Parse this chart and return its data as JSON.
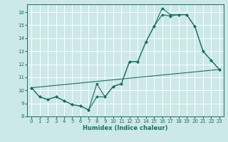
{
  "title": "",
  "xlabel": "Humidex (Indice chaleur)",
  "ylabel": "",
  "bg_color": "#cce8e8",
  "line_color": "#1a6e64",
  "grid_color": "#ffffff",
  "xlim": [
    -0.5,
    23.5
  ],
  "ylim": [
    8,
    16.6
  ],
  "yticks": [
    8,
    9,
    10,
    11,
    12,
    13,
    14,
    15,
    16
  ],
  "xticks": [
    0,
    1,
    2,
    3,
    4,
    5,
    6,
    7,
    8,
    9,
    10,
    11,
    12,
    13,
    14,
    15,
    16,
    17,
    18,
    19,
    20,
    21,
    22,
    23
  ],
  "series": [
    {
      "x": [
        0,
        1,
        2,
        3,
        4,
        5,
        6,
        7,
        8,
        9,
        10,
        11,
        12,
        13,
        14,
        15,
        16,
        17,
        18,
        19,
        20,
        21,
        22,
        23
      ],
      "y": [
        10.2,
        9.5,
        9.3,
        9.5,
        9.2,
        8.9,
        8.8,
        8.5,
        10.5,
        9.5,
        10.3,
        10.5,
        12.2,
        12.2,
        13.7,
        14.9,
        16.3,
        15.8,
        15.8,
        15.8,
        14.9,
        13.0,
        12.3,
        11.6
      ]
    },
    {
      "x": [
        0,
        1,
        2,
        3,
        4,
        5,
        6,
        7,
        8,
        9,
        10,
        11,
        12,
        13,
        14,
        15,
        16,
        17,
        18,
        19,
        20,
        21,
        22,
        23
      ],
      "y": [
        10.2,
        9.5,
        9.3,
        9.5,
        9.2,
        8.9,
        8.8,
        8.5,
        9.5,
        9.5,
        10.3,
        10.5,
        12.2,
        12.2,
        13.7,
        14.9,
        15.8,
        15.7,
        15.8,
        15.8,
        14.9,
        13.0,
        12.3,
        11.6
      ]
    },
    {
      "x": [
        0,
        23
      ],
      "y": [
        10.2,
        11.6
      ]
    }
  ]
}
